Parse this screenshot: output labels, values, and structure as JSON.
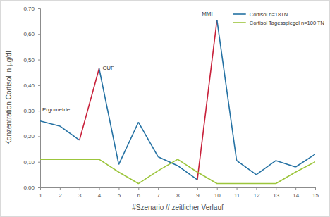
{
  "chart_data": {
    "type": "line",
    "x_label": "#Szenario // zeitlicher Verlauf",
    "y_label": "Konzentration Cortisol in µg/dl",
    "x": [
      1,
      2,
      3,
      4,
      5,
      6,
      7,
      8,
      9,
      10,
      11,
      12,
      13,
      14,
      15
    ],
    "xlim": [
      1,
      15
    ],
    "xticks": [
      1,
      2,
      3,
      4,
      5,
      6,
      7,
      8,
      9,
      10,
      11,
      12,
      13,
      14,
      15
    ],
    "ylim": [
      0,
      0.7
    ],
    "yticks": [
      {
        "value": 0,
        "label": "0,00"
      },
      {
        "value": 0.1,
        "label": "0,10"
      },
      {
        "value": 0.2,
        "label": "0,20"
      },
      {
        "value": 0.3,
        "label": "0,30"
      },
      {
        "value": 0.4,
        "label": "0,40"
      },
      {
        "value": 0.5,
        "label": "0,50"
      },
      {
        "value": 0.6,
        "label": "0,60"
      },
      {
        "value": 0.7,
        "label": "0,70"
      }
    ],
    "grid": false,
    "legend": "upper right",
    "series": [
      {
        "name": "Cortisol n=18TN",
        "color": "#2471a3",
        "colors": [
          "#2471a3",
          "#2471a3",
          "#2471a3",
          "#c8203a",
          "#2471a3",
          "#2471a3",
          "#2471a3",
          "#2471a3",
          "#2471a3",
          "#c8203a",
          "#2471a3",
          "#2471a3",
          "#2471a3",
          "#2471a3",
          "#2471a3"
        ],
        "values": [
          0.26,
          0.24,
          0.185,
          0.465,
          0.09,
          0.255,
          0.12,
          0.085,
          0.03,
          0.655,
          0.105,
          0.05,
          0.105,
          0.08,
          0.13
        ]
      },
      {
        "name": "Cortisol Tagesspiegel n=100 TN",
        "color": "#9cc53c",
        "values": [
          0.11,
          0.11,
          0.11,
          0.11,
          0.06,
          0.015,
          0.065,
          0.11,
          0.06,
          0.015,
          0.015,
          0.015,
          0.015,
          0.06,
          0.1
        ]
      }
    ],
    "annotations": [
      {
        "text": "Ergometrie",
        "x": 1
      },
      {
        "text": "CUF",
        "x": 4
      },
      {
        "text": "MMI",
        "x": 10
      }
    ]
  }
}
